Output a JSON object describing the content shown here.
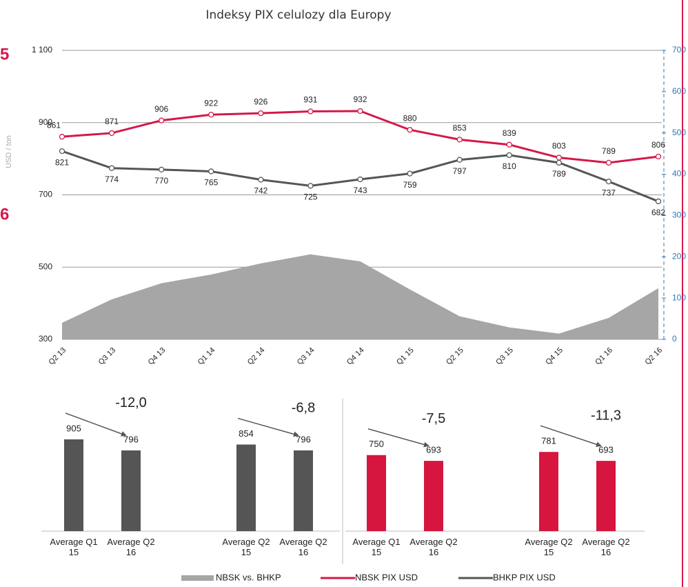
{
  "side_labels": [
    "5",
    "6"
  ],
  "chart_data": [
    {
      "type": "line",
      "title": "Indeksy PIX celulozy dla Europy",
      "y_label": "USD / ton",
      "categories": [
        "Q2 13",
        "Q3 13",
        "Q4 13",
        "Q1 14",
        "Q2 14",
        "Q3 14",
        "Q4 14",
        "Q1 15",
        "Q2 15",
        "Q3 15",
        "Q4 15",
        "Q1 16",
        "Q2 16"
      ],
      "ylim": [
        300,
        1100
      ],
      "yticks": [
        300,
        500,
        700,
        900,
        {
          "value": 1100,
          "label": "1 100"
        }
      ],
      "y2lim": [
        0,
        700
      ],
      "y2ticks": [
        0,
        100,
        200,
        300,
        400,
        500,
        600,
        700
      ],
      "grid": true,
      "series": [
        {
          "name": "NBSK vs. BHKP",
          "type": "area",
          "axis": "y2",
          "color": "#a6a6a6",
          "values": [
            40,
            97,
            136,
            157,
            184,
            206,
            189,
            121,
            56,
            29,
            14,
            52,
            124
          ]
        },
        {
          "name": "NBSK PIX USD",
          "type": "line",
          "color": "#d4184a",
          "values": [
            861,
            871,
            906,
            922,
            926,
            931,
            932,
            880,
            853,
            839,
            803,
            789,
            806
          ]
        },
        {
          "name": "BHKP PIX USD",
          "type": "line",
          "color": "#555555",
          "values": [
            821,
            774,
            770,
            765,
            742,
            725,
            743,
            759,
            797,
            810,
            789,
            737,
            682
          ]
        }
      ]
    },
    {
      "type": "bar",
      "categories": [
        "Average Q1 15",
        "Average Q2 16"
      ],
      "values": [
        905,
        796
      ],
      "color": "#555555",
      "annotation": "-12,0"
    },
    {
      "type": "bar",
      "categories": [
        "Average Q2 15",
        "Average Q2 16"
      ],
      "values": [
        854,
        796
      ],
      "color": "#555555",
      "annotation": "-6,8"
    },
    {
      "type": "bar",
      "categories": [
        "Average Q1 15",
        "Average Q2 16"
      ],
      "values": [
        750,
        693
      ],
      "color": "#d6163f",
      "annotation": "-7,5"
    },
    {
      "type": "bar",
      "categories": [
        "Average Q2 15",
        "Average Q2 16"
      ],
      "values": [
        781,
        693
      ],
      "color": "#d6163f",
      "annotation": "-11,3"
    }
  ]
}
